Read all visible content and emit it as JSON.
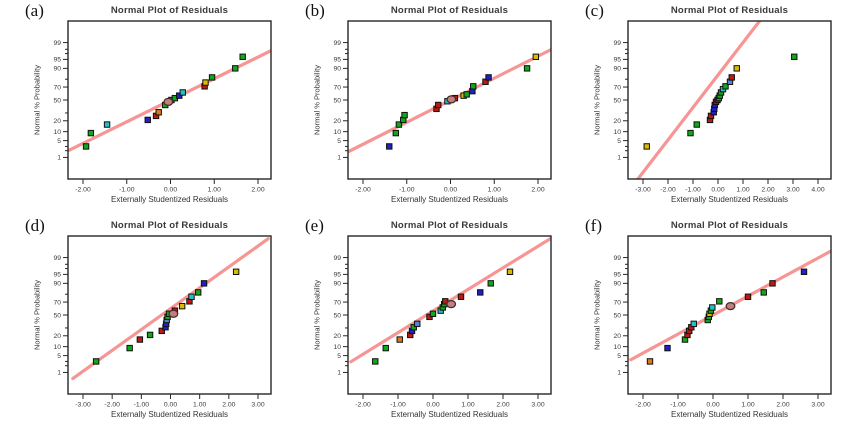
{
  "figure": {
    "background": "#ffffff"
  },
  "palette": {
    "green": "#0fa818",
    "cyan": "#23c0c7",
    "blue": "#2020c8",
    "lightblue": "#4f86d8",
    "red": "#bc1a12",
    "orange": "#e07818",
    "yellow": "#d9bc00",
    "trend_line": "#f79494",
    "frame": "#262626",
    "text": "#3b3b3b",
    "overlap_circle_fill": "#c08080",
    "overlap_circle_stroke": "#4a2b2b"
  },
  "chart_data": [
    {
      "type": "scatter",
      "panel_label": "(a)",
      "title": "Normal Plot of Residuals",
      "x_axis_title": "Externally Studentized Residuals",
      "y_axis_title": "Normal % Probability",
      "x_ticks": [
        -2,
        -1,
        0,
        1,
        2
      ],
      "x_tick_labels": [
        "-2.00",
        "-1.00",
        "0.00",
        "1.00",
        "2.00"
      ],
      "y_ticks": [
        {
          "p": 99,
          "label": "99"
        },
        {
          "p": 98,
          "label": ""
        },
        {
          "p": 97,
          "label": ""
        },
        {
          "p": 95,
          "label": "95"
        },
        {
          "p": 90,
          "label": "90"
        },
        {
          "p": 80,
          "label": ""
        },
        {
          "p": 70,
          "label": "70"
        },
        {
          "p": 50,
          "label": "50"
        },
        {
          "p": 30,
          "label": ""
        },
        {
          "p": 20,
          "label": "20"
        },
        {
          "p": 10,
          "label": "10"
        },
        {
          "p": 5,
          "label": "5"
        },
        {
          "p": 3,
          "label": ""
        },
        {
          "p": 2,
          "label": ""
        },
        {
          "p": 1,
          "label": "1"
        }
      ],
      "trend_line": {
        "x1": -2.34,
        "p1": 2.0,
        "x2": 2.36,
        "p2": 98.0
      },
      "points": [
        {
          "x": -1.93,
          "p": 3,
          "c": "green"
        },
        {
          "x": -1.82,
          "p": 9,
          "c": "green"
        },
        {
          "x": -1.45,
          "p": 16,
          "c": "cyan"
        },
        {
          "x": -0.52,
          "p": 21,
          "c": "blue"
        },
        {
          "x": -0.33,
          "p": 26,
          "c": "red"
        },
        {
          "x": -0.27,
          "p": 31,
          "c": "orange"
        },
        {
          "x": -0.12,
          "p": 42,
          "c": "green"
        },
        {
          "x": 0.02,
          "p": 50,
          "c": "green"
        },
        {
          "x": 0.1,
          "p": 53,
          "c": "green"
        },
        {
          "x": 0.2,
          "p": 57,
          "c": "blue"
        },
        {
          "x": 0.28,
          "p": 62,
          "c": "cyan"
        },
        {
          "x": 0.78,
          "p": 71,
          "c": "red"
        },
        {
          "x": 0.8,
          "p": 76,
          "c": "yellow"
        },
        {
          "x": 0.95,
          "p": 82,
          "c": "green"
        },
        {
          "x": 1.48,
          "p": 90,
          "c": "green"
        },
        {
          "x": 1.65,
          "p": 96,
          "c": "green"
        }
      ],
      "overlap_circle": {
        "x": -0.05,
        "p": 47
      }
    },
    {
      "type": "scatter",
      "panel_label": "(b)",
      "title": "Normal Plot of Residuals",
      "x_axis_title": "Externally Studentized Residuals",
      "y_axis_title": "Normal % Probability",
      "x_ticks": [
        -2,
        -1,
        0,
        1,
        2
      ],
      "x_tick_labels": [
        "-2.00",
        "-1.00",
        "0.00",
        "1.00",
        "2.00"
      ],
      "y_ticks": [
        {
          "p": 99,
          "label": "99"
        },
        {
          "p": 98,
          "label": ""
        },
        {
          "p": 97,
          "label": ""
        },
        {
          "p": 95,
          "label": "95"
        },
        {
          "p": 90,
          "label": "90"
        },
        {
          "p": 80,
          "label": ""
        },
        {
          "p": 70,
          "label": "70"
        },
        {
          "p": 50,
          "label": "50"
        },
        {
          "p": 30,
          "label": ""
        },
        {
          "p": 20,
          "label": "20"
        },
        {
          "p": 10,
          "label": "10"
        },
        {
          "p": 5,
          "label": "5"
        },
        {
          "p": 3,
          "label": ""
        },
        {
          "p": 2,
          "label": ""
        },
        {
          "p": 1,
          "label": "1"
        }
      ],
      "trend_line": {
        "x1": -2.34,
        "p1": 1.8,
        "x2": 2.36,
        "p2": 98.2
      },
      "points": [
        {
          "x": -1.4,
          "p": 3,
          "c": "blue"
        },
        {
          "x": -1.25,
          "p": 9,
          "c": "green"
        },
        {
          "x": -1.18,
          "p": 16,
          "c": "green"
        },
        {
          "x": -1.08,
          "p": 21,
          "c": "green"
        },
        {
          "x": -1.05,
          "p": 27,
          "c": "green"
        },
        {
          "x": -0.32,
          "p": 36,
          "c": "red"
        },
        {
          "x": -0.28,
          "p": 42,
          "c": "red"
        },
        {
          "x": -0.07,
          "p": 48,
          "c": "cyan"
        },
        {
          "x": 0.1,
          "p": 53,
          "c": "red"
        },
        {
          "x": 0.3,
          "p": 57,
          "c": "yellow"
        },
        {
          "x": 0.37,
          "p": 59,
          "c": "green"
        },
        {
          "x": 0.5,
          "p": 64,
          "c": "blue"
        },
        {
          "x": 0.52,
          "p": 71,
          "c": "green"
        },
        {
          "x": 0.8,
          "p": 77,
          "c": "red"
        },
        {
          "x": 0.87,
          "p": 82,
          "c": "blue"
        },
        {
          "x": 1.75,
          "p": 90,
          "c": "green"
        },
        {
          "x": 1.95,
          "p": 96,
          "c": "yellow"
        }
      ],
      "overlap_circle": {
        "x": 0.02,
        "p": 51
      }
    },
    {
      "type": "scatter",
      "panel_label": "(c)",
      "title": "Normal Plot of Residuals",
      "x_axis_title": "Externally Studentized Residuals",
      "y_axis_title": "Normal % Probability",
      "x_ticks": [
        -3,
        -2,
        -1,
        0,
        1,
        2,
        3,
        4
      ],
      "x_tick_labels": [
        "-3.00",
        "-2.00",
        "-1.00",
        "0.00",
        "1.00",
        "2.00",
        "3.00",
        "4.00"
      ],
      "y_ticks": [
        {
          "p": 99,
          "label": "99"
        },
        {
          "p": 98,
          "label": ""
        },
        {
          "p": 97,
          "label": ""
        },
        {
          "p": 95,
          "label": "95"
        },
        {
          "p": 90,
          "label": "90"
        },
        {
          "p": 80,
          "label": ""
        },
        {
          "p": 70,
          "label": "70"
        },
        {
          "p": 50,
          "label": "50"
        },
        {
          "p": 30,
          "label": ""
        },
        {
          "p": 20,
          "label": "20"
        },
        {
          "p": 10,
          "label": "10"
        },
        {
          "p": 5,
          "label": "5"
        },
        {
          "p": 3,
          "label": ""
        },
        {
          "p": 2,
          "label": ""
        },
        {
          "p": 1,
          "label": "1"
        }
      ],
      "trend_line": {
        "x1": -3.2,
        "p1": 0.07,
        "x2": 1.66,
        "p2": 99.93
      },
      "points": [
        {
          "x": -2.85,
          "p": 3,
          "c": "yellow"
        },
        {
          "x": -1.1,
          "p": 9,
          "c": "green"
        },
        {
          "x": -0.85,
          "p": 16,
          "c": "green"
        },
        {
          "x": -0.32,
          "p": 21,
          "c": "red"
        },
        {
          "x": -0.28,
          "p": 26,
          "c": "red"
        },
        {
          "x": -0.17,
          "p": 31,
          "c": "blue"
        },
        {
          "x": -0.15,
          "p": 36,
          "c": "blue"
        },
        {
          "x": -0.13,
          "p": 42,
          "c": "blue"
        },
        {
          "x": -0.08,
          "p": 47,
          "c": "red"
        },
        {
          "x": -0.02,
          "p": 50,
          "c": "red"
        },
        {
          "x": 0.03,
          "p": 53,
          "c": "green"
        },
        {
          "x": 0.07,
          "p": 57,
          "c": "green"
        },
        {
          "x": 0.12,
          "p": 62,
          "c": "green"
        },
        {
          "x": 0.2,
          "p": 67,
          "c": "cyan"
        },
        {
          "x": 0.3,
          "p": 71,
          "c": "green"
        },
        {
          "x": 0.48,
          "p": 77,
          "c": "lightblue"
        },
        {
          "x": 0.55,
          "p": 82,
          "c": "red"
        },
        {
          "x": 0.75,
          "p": 90,
          "c": "yellow"
        },
        {
          "x": 3.05,
          "p": 96,
          "c": "green"
        }
      ],
      "overlap_circle": null
    },
    {
      "type": "scatter",
      "panel_label": "(d)",
      "title": "Normal Plot of Residuals",
      "x_axis_title": "Externally Studentized Residuals",
      "y_axis_title": "Normal % Probability",
      "x_ticks": [
        -3,
        -2,
        -1,
        0,
        1,
        2,
        3
      ],
      "x_tick_labels": [
        "-3.00",
        "-2.00",
        "-1.00",
        "0.00",
        "1.00",
        "2.00",
        "3.00"
      ],
      "y_ticks": [
        {
          "p": 99,
          "label": "99"
        },
        {
          "p": 98,
          "label": ""
        },
        {
          "p": 97,
          "label": ""
        },
        {
          "p": 95,
          "label": "95"
        },
        {
          "p": 90,
          "label": "90"
        },
        {
          "p": 80,
          "label": ""
        },
        {
          "p": 70,
          "label": "70"
        },
        {
          "p": 50,
          "label": "50"
        },
        {
          "p": 30,
          "label": ""
        },
        {
          "p": 20,
          "label": "20"
        },
        {
          "p": 10,
          "label": "10"
        },
        {
          "p": 5,
          "label": "5"
        },
        {
          "p": 3,
          "label": ""
        },
        {
          "p": 2,
          "label": ""
        },
        {
          "p": 1,
          "label": "1"
        }
      ],
      "trend_line": {
        "x1": -3.35,
        "p1": 0.5,
        "x2": 3.35,
        "p2": 99.9
      },
      "points": [
        {
          "x": -2.55,
          "p": 3,
          "c": "green"
        },
        {
          "x": -1.4,
          "p": 9,
          "c": "green"
        },
        {
          "x": -1.05,
          "p": 16,
          "c": "red"
        },
        {
          "x": -0.7,
          "p": 21,
          "c": "green"
        },
        {
          "x": -0.3,
          "p": 26,
          "c": "red"
        },
        {
          "x": -0.17,
          "p": 31,
          "c": "blue"
        },
        {
          "x": -0.15,
          "p": 36,
          "c": "blue"
        },
        {
          "x": -0.13,
          "p": 42,
          "c": "lightblue"
        },
        {
          "x": -0.1,
          "p": 47,
          "c": "green"
        },
        {
          "x": -0.05,
          "p": 52,
          "c": "green"
        },
        {
          "x": 0.15,
          "p": 57,
          "c": "red"
        },
        {
          "x": 0.4,
          "p": 64,
          "c": "yellow"
        },
        {
          "x": 0.65,
          "p": 71,
          "c": "red"
        },
        {
          "x": 0.72,
          "p": 77,
          "c": "cyan"
        },
        {
          "x": 0.95,
          "p": 82,
          "c": "green"
        },
        {
          "x": 1.15,
          "p": 90,
          "c": "blue"
        },
        {
          "x": 2.25,
          "p": 96,
          "c": "yellow"
        }
      ],
      "overlap_circle": {
        "x": 0.1,
        "p": 52
      }
    },
    {
      "type": "scatter",
      "panel_label": "(e)",
      "title": "Normal Plot of Residuals",
      "x_axis_title": "Externally Studentized Residuals",
      "y_axis_title": "Normal % Probability",
      "x_ticks": [
        -2,
        -1,
        0,
        1,
        2,
        3
      ],
      "x_tick_labels": [
        "-2.00",
        "-1.00",
        "0.00",
        "1.00",
        "2.00",
        "3.00"
      ],
      "y_ticks": [
        {
          "p": 99,
          "label": "99"
        },
        {
          "p": 98,
          "label": ""
        },
        {
          "p": 97,
          "label": ""
        },
        {
          "p": 95,
          "label": "95"
        },
        {
          "p": 90,
          "label": "90"
        },
        {
          "p": 80,
          "label": ""
        },
        {
          "p": 70,
          "label": "70"
        },
        {
          "p": 50,
          "label": "50"
        },
        {
          "p": 30,
          "label": ""
        },
        {
          "p": 20,
          "label": "20"
        },
        {
          "p": 10,
          "label": "10"
        },
        {
          "p": 5,
          "label": "5"
        },
        {
          "p": 3,
          "label": ""
        },
        {
          "p": 2,
          "label": ""
        },
        {
          "p": 1,
          "label": "1"
        }
      ],
      "trend_line": {
        "x1": -2.35,
        "p1": 2.9,
        "x2": 3.35,
        "p2": 99.9
      },
      "points": [
        {
          "x": -1.65,
          "p": 3,
          "c": "green"
        },
        {
          "x": -1.35,
          "p": 9,
          "c": "green"
        },
        {
          "x": -0.95,
          "p": 16,
          "c": "orange"
        },
        {
          "x": -0.65,
          "p": 21,
          "c": "red"
        },
        {
          "x": -0.6,
          "p": 26,
          "c": "blue"
        },
        {
          "x": -0.55,
          "p": 31,
          "c": "green"
        },
        {
          "x": -0.45,
          "p": 36,
          "c": "lightblue"
        },
        {
          "x": -0.1,
          "p": 47,
          "c": "red"
        },
        {
          "x": 0.0,
          "p": 52,
          "c": "green"
        },
        {
          "x": 0.22,
          "p": 57,
          "c": "cyan"
        },
        {
          "x": 0.28,
          "p": 62,
          "c": "green"
        },
        {
          "x": 0.32,
          "p": 67,
          "c": "green"
        },
        {
          "x": 0.35,
          "p": 71,
          "c": "red"
        },
        {
          "x": 0.8,
          "p": 77,
          "c": "red"
        },
        {
          "x": 1.35,
          "p": 82,
          "c": "blue"
        },
        {
          "x": 1.65,
          "p": 90,
          "c": "green"
        },
        {
          "x": 2.2,
          "p": 96,
          "c": "yellow"
        }
      ],
      "overlap_circle": {
        "x": 0.52,
        "p": 67
      }
    },
    {
      "type": "scatter",
      "panel_label": "(f)",
      "title": "Normal Plot of Residuals",
      "x_axis_title": "Externally Studentized Residuals",
      "y_axis_title": "Normal % Probability",
      "x_ticks": [
        -2,
        -1,
        0,
        1,
        2,
        3
      ],
      "x_tick_labels": [
        "-2.00",
        "-1.00",
        "0.00",
        "1.00",
        "2.00",
        "3.00"
      ],
      "y_ticks": [
        {
          "p": 99,
          "label": "99"
        },
        {
          "p": 98,
          "label": ""
        },
        {
          "p": 97,
          "label": ""
        },
        {
          "p": 95,
          "label": "95"
        },
        {
          "p": 90,
          "label": "90"
        },
        {
          "p": 80,
          "label": ""
        },
        {
          "p": 70,
          "label": "70"
        },
        {
          "p": 50,
          "label": "50"
        },
        {
          "p": 30,
          "label": ""
        },
        {
          "p": 20,
          "label": "20"
        },
        {
          "p": 10,
          "label": "10"
        },
        {
          "p": 5,
          "label": "5"
        },
        {
          "p": 3,
          "label": ""
        },
        {
          "p": 2,
          "label": ""
        },
        {
          "p": 1,
          "label": "1"
        }
      ],
      "trend_line": {
        "x1": -2.35,
        "p1": 3.5,
        "x2": 3.35,
        "p2": 99.5
      },
      "points": [
        {
          "x": -1.8,
          "p": 3,
          "c": "orange"
        },
        {
          "x": -1.3,
          "p": 9,
          "c": "blue"
        },
        {
          "x": -0.8,
          "p": 16,
          "c": "green"
        },
        {
          "x": -0.73,
          "p": 21,
          "c": "red"
        },
        {
          "x": -0.68,
          "p": 26,
          "c": "red"
        },
        {
          "x": -0.62,
          "p": 31,
          "c": "red"
        },
        {
          "x": -0.55,
          "p": 36,
          "c": "cyan"
        },
        {
          "x": -0.15,
          "p": 42,
          "c": "green"
        },
        {
          "x": -0.12,
          "p": 47,
          "c": "green"
        },
        {
          "x": -0.1,
          "p": 52,
          "c": "yellow"
        },
        {
          "x": -0.06,
          "p": 57,
          "c": "green"
        },
        {
          "x": -0.02,
          "p": 62,
          "c": "cyan"
        },
        {
          "x": 0.18,
          "p": 71,
          "c": "green"
        },
        {
          "x": 1.0,
          "p": 77,
          "c": "red"
        },
        {
          "x": 1.45,
          "p": 82,
          "c": "green"
        },
        {
          "x": 1.7,
          "p": 90,
          "c": "red"
        },
        {
          "x": 2.6,
          "p": 96,
          "c": "blue"
        }
      ],
      "overlap_circle": {
        "x": 0.5,
        "p": 64
      }
    }
  ]
}
